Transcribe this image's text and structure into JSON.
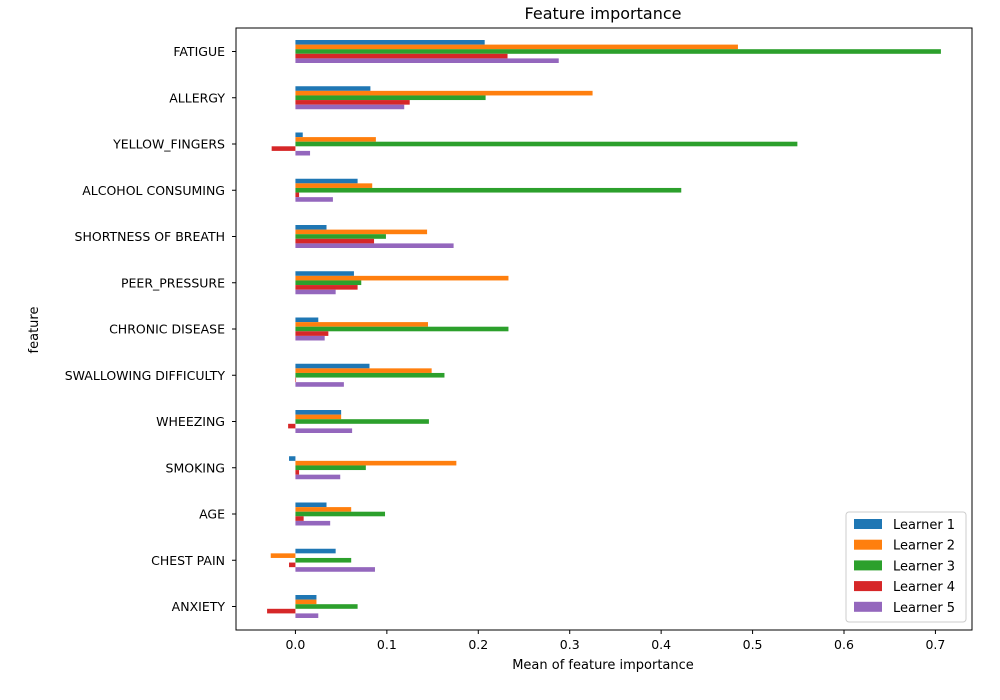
{
  "chart_data": {
    "type": "bar",
    "orientation": "horizontal",
    "title": "Feature importance",
    "xlabel": "Mean of feature importance",
    "ylabel": "feature",
    "xlim": [
      -0.065,
      0.74
    ],
    "xticks": [
      0.0,
      0.1,
      0.2,
      0.3,
      0.4,
      0.5,
      0.6,
      0.7
    ],
    "grid": false,
    "legend_position": "lower-right",
    "categories": [
      "FATIGUE ",
      "ALLERGY ",
      "YELLOW_FINGERS",
      "ALCOHOL CONSUMING",
      "SHORTNESS OF BREATH",
      "PEER_PRESSURE",
      "CHRONIC DISEASE",
      "SWALLOWING DIFFICULTY",
      "WHEEZING",
      "SMOKING",
      "AGE",
      "CHEST PAIN",
      "ANXIETY"
    ],
    "series": [
      {
        "name": "Learner 1",
        "color": "#1f77b4",
        "values": [
          0.207,
          0.082,
          0.008,
          0.068,
          0.034,
          0.064,
          0.025,
          0.081,
          0.05,
          -0.007,
          0.034,
          0.044,
          0.023
        ]
      },
      {
        "name": "Learner 2",
        "color": "#ff7f0e",
        "values": [
          0.484,
          0.325,
          0.088,
          0.084,
          0.144,
          0.233,
          0.145,
          0.149,
          0.05,
          0.176,
          0.061,
          -0.027,
          0.023
        ]
      },
      {
        "name": "Learner 3",
        "color": "#2ca02c",
        "values": [
          0.706,
          0.208,
          0.549,
          0.422,
          0.099,
          0.072,
          0.233,
          0.163,
          0.146,
          0.077,
          0.098,
          0.061,
          0.068
        ]
      },
      {
        "name": "Learner 4",
        "color": "#d62728",
        "values": [
          0.232,
          0.125,
          -0.026,
          0.004,
          0.086,
          0.068,
          0.036,
          0.0,
          -0.008,
          0.004,
          0.009,
          -0.007,
          -0.031
        ]
      },
      {
        "name": "Learner 5",
        "color": "#9467bd",
        "values": [
          0.288,
          0.119,
          0.016,
          0.041,
          0.173,
          0.044,
          0.032,
          0.053,
          0.062,
          0.049,
          0.038,
          0.087,
          0.025
        ]
      }
    ]
  }
}
